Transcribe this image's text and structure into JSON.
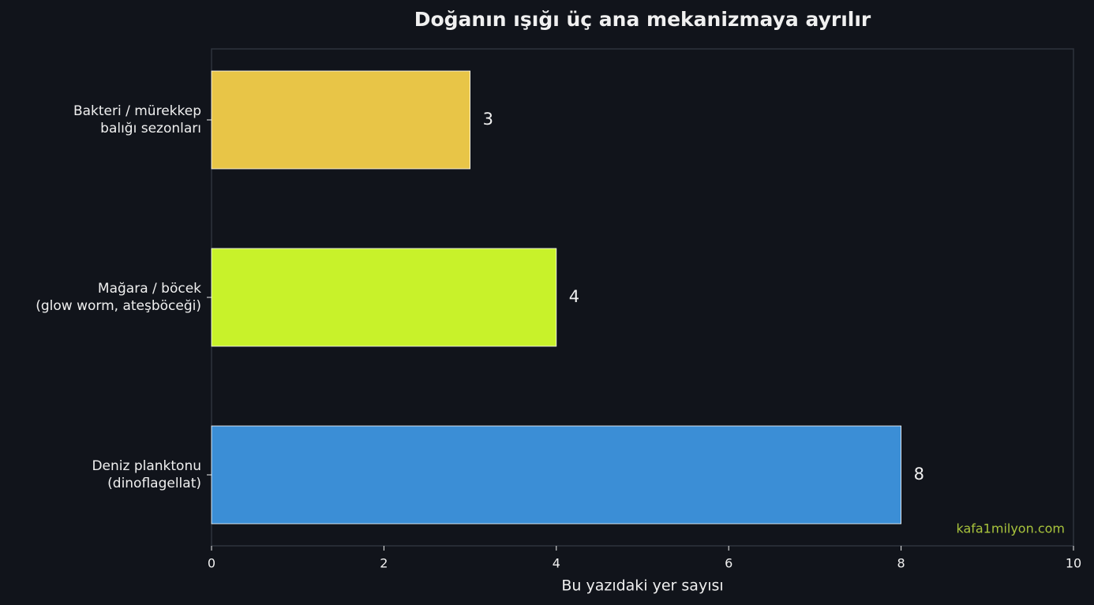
{
  "chart_data": {
    "type": "barh",
    "title": "Doğanın ışığı üç ana mekanizmaya ayrılır",
    "xlabel": "Bu yazıdaki yer sayısı",
    "categories": [
      "Deniz planktonu\n(dinoflagellat)",
      "Mağara / böcek\n(glow worm, ateşböceği)",
      "Bakteri / mürekkep\nbalığı sezonları"
    ],
    "values": [
      8,
      4,
      3
    ],
    "colors": [
      "#3b8ed6",
      "#c8f22a",
      "#e8c547"
    ],
    "xlim": [
      0,
      10
    ],
    "xticks": [
      0,
      2,
      4,
      6,
      8,
      10
    ],
    "annotation": "kafa1milyon.com"
  }
}
